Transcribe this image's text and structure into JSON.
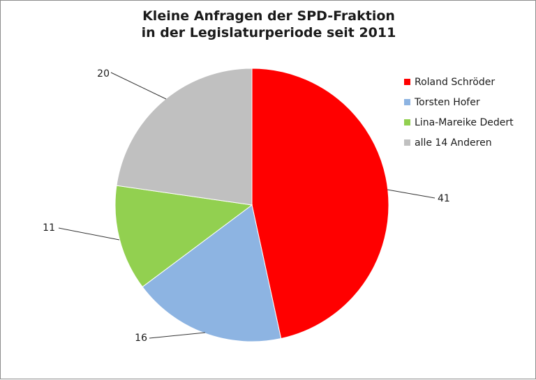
{
  "chart_data": {
    "type": "pie",
    "title": [
      "Kleine Anfragen der SPD-Fraktion",
      "in der Legislaturperiode seit 2011"
    ],
    "categories": [
      "Roland Schröder",
      "Torsten Hofer",
      "Lina-Mareike Dedert",
      "alle 14 Anderen"
    ],
    "values": [
      41,
      16,
      11,
      20
    ],
    "colors": [
      "#ff0000",
      "#8db4e2",
      "#92d050",
      "#c0c0c0"
    ],
    "legend_position": "right",
    "data_labels": [
      "41",
      "16",
      "11",
      "20"
    ]
  }
}
